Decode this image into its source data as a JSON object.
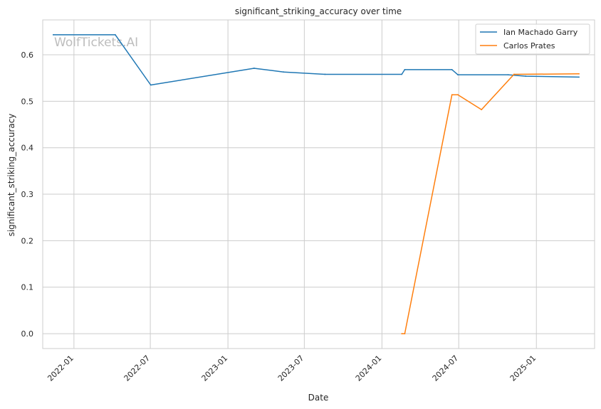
{
  "chart_data": {
    "type": "line",
    "title": "significant_striking_accuracy over time",
    "xlabel": "Date",
    "ylabel": "significant_striking_accuracy",
    "watermark": "WolfTickets.AI",
    "x_ticks": [
      "2022-01",
      "2022-07",
      "2023-01",
      "2023-07",
      "2024-01",
      "2024-07",
      "2025-01"
    ],
    "y_ticks": [
      "0.0",
      "0.1",
      "0.2",
      "0.3",
      "0.4",
      "0.5",
      "0.6"
    ],
    "xlim": [
      "2021-10-19",
      "2025-05-19"
    ],
    "ylim": [
      -0.032,
      0.675
    ],
    "grid": true,
    "legend_position": "top-right",
    "series": [
      {
        "name": "Ian Machado Garry",
        "color": "#1f77b4",
        "points": [
          [
            "2021-11-13",
            0.643
          ],
          [
            "2022-04-09",
            0.643
          ],
          [
            "2022-07-02",
            0.535
          ],
          [
            "2023-03-04",
            0.571
          ],
          [
            "2023-05-13",
            0.563
          ],
          [
            "2023-08-19",
            0.558
          ],
          [
            "2024-02-17",
            0.558
          ],
          [
            "2024-02-24",
            0.568
          ],
          [
            "2024-06-15",
            0.568
          ],
          [
            "2024-06-29",
            0.557
          ],
          [
            "2024-10-26",
            0.557
          ],
          [
            "2024-12-07",
            0.554
          ],
          [
            "2025-04-12",
            0.552
          ]
        ]
      },
      {
        "name": "Carlos Prates",
        "color": "#ff7f0e",
        "points": [
          [
            "2024-02-17",
            0.0
          ],
          [
            "2024-02-24",
            0.0
          ],
          [
            "2024-06-15",
            0.514
          ],
          [
            "2024-06-29",
            0.514
          ],
          [
            "2024-08-24",
            0.482
          ],
          [
            "2024-11-09",
            0.558
          ],
          [
            "2025-04-12",
            0.559
          ]
        ]
      }
    ]
  }
}
